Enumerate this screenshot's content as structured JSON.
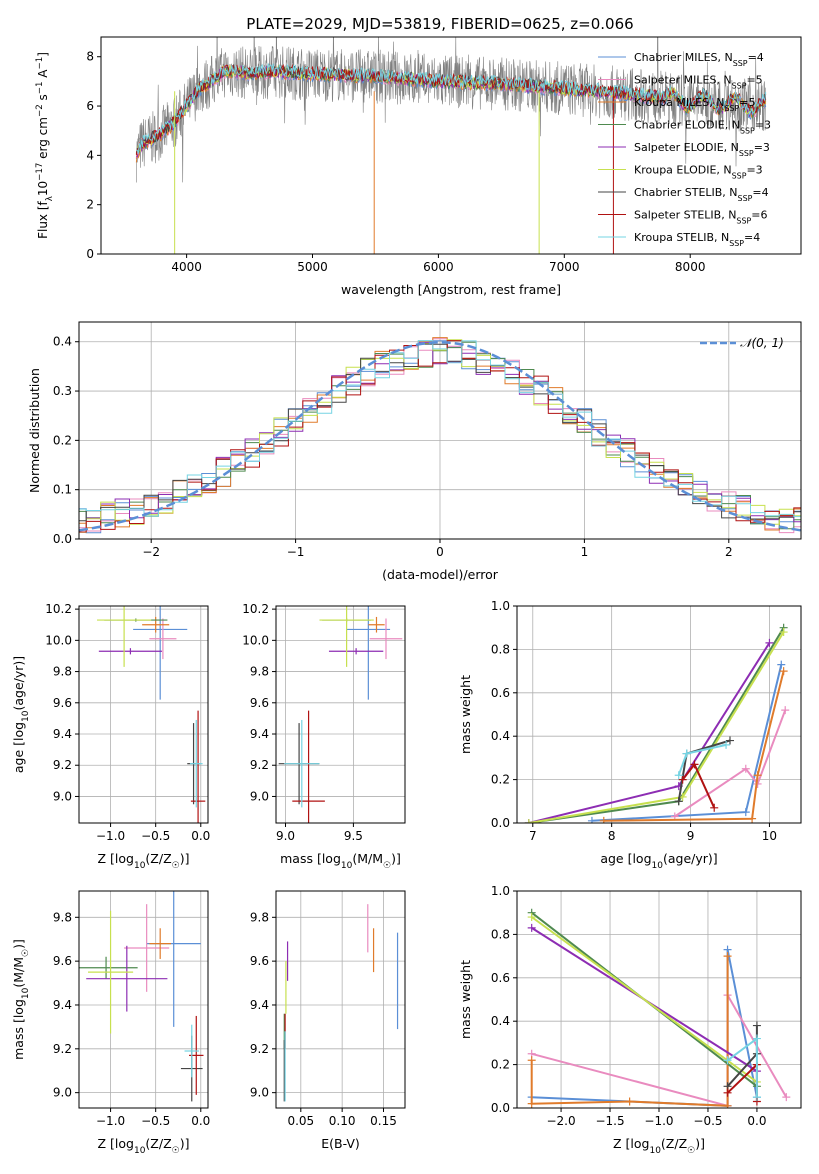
{
  "figure_title": "PLATE=2029, MJD=53819, FIBERID=0625, z=0.066",
  "colors": {
    "chabrier_miles": "#5b8fd6",
    "salpeter_miles": "#e98bbf",
    "kroupa_miles": "#e07b2b",
    "chabrier_elodie": "#4f8a4f",
    "salpeter_elodie": "#8d2db3",
    "kroupa_elodie": "#c7e04f",
    "chabrier_stelib": "#454545",
    "salpeter_stelib": "#b01212",
    "kroupa_stelib": "#76d4e3",
    "data": "#808080",
    "normal": "#5b8fd6"
  },
  "chart_data": [
    {
      "id": "spectrum",
      "type": "line",
      "title": "PLATE=2029, MJD=53819, FIBERID=0625, z=0.066",
      "xlabel": "wavelength [Angstrom, rest frame]",
      "ylabel": "Flux [f_λ 10^-17 erg cm^-2 s^-1 A^-1]",
      "xlim": [
        3320,
        8880
      ],
      "ylim": [
        0,
        8.8
      ],
      "xticks": [
        4000,
        5000,
        6000,
        7000,
        8000
      ],
      "yticks": [
        0,
        2,
        4,
        6,
        8
      ],
      "grid": false,
      "legend_position": "top-right",
      "legend": [
        "Chabrier MILES, N_SSP=4",
        "Salpeter MILES, N_SSP=5",
        "Kroupa MILES, N_SSP=5",
        "Chabrier ELODIE, N_SSP=3",
        "Salpeter ELODIE, N_SSP=3",
        "Kroupa ELODIE, N_SSP=3",
        "Chabrier STELIB, N_SSP=4",
        "Salpeter STELIB, N_SSP=6",
        "Kroupa STELIB, N_SSP=4"
      ],
      "continuum": {
        "wavelength": [
          3600,
          3650,
          3700,
          3800,
          3900,
          4000,
          4100,
          4200,
          4300,
          4400,
          4500,
          4700,
          5000,
          5500,
          6000,
          6500,
          7000,
          7500,
          8000,
          8300,
          8600
        ],
        "flux": [
          4.0,
          4.5,
          4.6,
          4.9,
          5.3,
          6.0,
          6.7,
          7.0,
          7.4,
          7.4,
          7.3,
          7.4,
          7.3,
          7.2,
          7.0,
          6.9,
          6.7,
          6.5,
          6.2,
          6.1,
          6.0
        ]
      }
    },
    {
      "id": "residuals",
      "type": "step",
      "xlabel": "(data-model)/error",
      "ylabel": "Normed distribution",
      "xlim": [
        -2.5,
        2.5
      ],
      "ylim": [
        0,
        0.44
      ],
      "xticks": [
        -2,
        -1,
        0,
        1,
        2
      ],
      "yticks": [
        0.0,
        0.1,
        0.2,
        0.3,
        0.4
      ],
      "grid": true,
      "legend_position": "top-right",
      "legend": [
        "𝒩(0, 1)"
      ],
      "bin_width": 0.1
    },
    {
      "id": "age_vs_Z",
      "type": "errorbar",
      "xlabel": "Z [log10(Z/Z☉)]",
      "ylabel": "age  [log10(age/yr)]",
      "xlim": [
        -1.35,
        0.08
      ],
      "ylim": [
        8.83,
        10.22
      ],
      "xticks": [
        -1.0,
        -0.5,
        0.0
      ],
      "yticks": [
        9.0,
        9.2,
        9.4,
        9.6,
        9.8,
        10.0,
        10.2
      ],
      "grid": true,
      "points": [
        {
          "series": "chabrier_miles",
          "x": -0.45,
          "xerr": 0.3,
          "y": 10.07,
          "yerr": 0.45
        },
        {
          "series": "salpeter_miles",
          "x": -0.42,
          "xerr": 0.15,
          "y": 10.01,
          "yerr": 0.13
        },
        {
          "series": "kroupa_miles",
          "x": -0.5,
          "xerr": 0.15,
          "y": 10.1,
          "yerr": 0.05
        },
        {
          "series": "chabrier_elodie",
          "x": -0.72,
          "xerr": 0.35,
          "y": 10.13,
          "yerr": 0.01
        },
        {
          "series": "salpeter_elodie",
          "x": -0.78,
          "xerr": 0.35,
          "y": 9.93,
          "yerr": 0.02
        },
        {
          "series": "kroupa_elodie",
          "x": -0.85,
          "xerr": 0.3,
          "y": 10.13,
          "yerr": 0.3
        },
        {
          "series": "chabrier_stelib",
          "x": -0.08,
          "xerr": 0.07,
          "y": 9.21,
          "yerr": 0.26
        },
        {
          "series": "salpeter_stelib",
          "x": -0.03,
          "xerr": 0.08,
          "y": 8.97,
          "yerr": 0.58
        },
        {
          "series": "kroupa_stelib",
          "x": -0.05,
          "xerr": 0.07,
          "y": 9.21,
          "yerr": 0.28
        }
      ]
    },
    {
      "id": "age_vs_mass",
      "type": "errorbar",
      "xlabel": "mass [log10(M/M☉)]",
      "ylabel": "",
      "xlim": [
        8.93,
        9.88
      ],
      "ylim": [
        8.83,
        10.22
      ],
      "xticks": [
        9.0,
        9.5
      ],
      "yticks": [
        9.0,
        9.2,
        9.4,
        9.6,
        9.8,
        10.0,
        10.2
      ],
      "grid": true,
      "points": [
        {
          "series": "chabrier_miles",
          "x": 9.61,
          "xerr": 0.16,
          "y": 10.07,
          "yerr": 0.45
        },
        {
          "series": "salpeter_miles",
          "x": 9.74,
          "xerr": 0.12,
          "y": 10.01,
          "yerr": 0.13
        },
        {
          "series": "kroupa_miles",
          "x": 9.67,
          "xerr": 0.06,
          "y": 10.1,
          "yerr": 0.05
        },
        {
          "series": "chabrier_elodie",
          "x": 9.45,
          "xerr": 0.18,
          "y": 10.13,
          "yerr": 0.01
        },
        {
          "series": "salpeter_elodie",
          "x": 9.52,
          "xerr": 0.2,
          "y": 9.93,
          "yerr": 0.02
        },
        {
          "series": "kroupa_elodie",
          "x": 9.45,
          "xerr": 0.2,
          "y": 10.13,
          "yerr": 0.3
        },
        {
          "series": "chabrier_stelib",
          "x": 9.1,
          "xerr": 0.15,
          "y": 9.21,
          "yerr": 0.26
        },
        {
          "series": "salpeter_stelib",
          "x": 9.17,
          "xerr": 0.12,
          "y": 8.97,
          "yerr": 0.58
        },
        {
          "series": "kroupa_stelib",
          "x": 9.12,
          "xerr": 0.13,
          "y": 9.21,
          "yerr": 0.28
        }
      ]
    },
    {
      "id": "mass_weight_vs_age",
      "type": "line",
      "xlabel": "age  [log10(age/yr)]",
      "ylabel": "mass weight",
      "xlim": [
        6.8,
        10.4
      ],
      "ylim": [
        0,
        1.0
      ],
      "xticks": [
        7,
        8,
        9,
        10
      ],
      "yticks": [
        0.0,
        0.2,
        0.4,
        0.6,
        0.8,
        1.0
      ],
      "grid": true,
      "series": [
        {
          "series": "chabrier_miles",
          "x": [
            7.75,
            9.7,
            10.15
          ],
          "y": [
            0.01,
            0.05,
            0.73
          ]
        },
        {
          "series": "salpeter_miles",
          "x": [
            8.8,
            9.7,
            9.85,
            10.2
          ],
          "y": [
            0.03,
            0.25,
            0.18,
            0.52
          ]
        },
        {
          "series": "kroupa_miles",
          "x": [
            7.9,
            9.78,
            9.85,
            10.18
          ],
          "y": [
            0.01,
            0.02,
            0.22,
            0.7
          ]
        },
        {
          "series": "chabrier_elodie",
          "x": [
            6.95,
            8.85,
            10.18
          ],
          "y": [
            0.0,
            0.1,
            0.9
          ]
        },
        {
          "series": "salpeter_elodie",
          "x": [
            6.95,
            8.85,
            10.0
          ],
          "y": [
            0.0,
            0.17,
            0.83
          ]
        },
        {
          "series": "kroupa_elodie",
          "x": [
            6.95,
            8.9,
            10.18
          ],
          "y": [
            0.0,
            0.12,
            0.88
          ]
        },
        {
          "series": "chabrier_stelib",
          "x": [
            8.85,
            8.95,
            9.5
          ],
          "y": [
            0.1,
            0.32,
            0.38
          ]
        },
        {
          "series": "salpeter_stelib",
          "x": [
            8.9,
            9.05,
            9.3
          ],
          "y": [
            0.2,
            0.27,
            0.07
          ]
        },
        {
          "series": "kroupa_stelib",
          "x": [
            8.85,
            8.95,
            9.45
          ],
          "y": [
            0.22,
            0.32,
            0.36
          ]
        }
      ]
    },
    {
      "id": "mass_vs_Z",
      "type": "errorbar",
      "xlabel": "Z [log10(Z/Z☉)]",
      "ylabel": "mass [log10(M/M☉)]",
      "xlim": [
        -1.35,
        0.08
      ],
      "ylim": [
        8.93,
        9.92
      ],
      "xticks": [
        -1.0,
        -0.5,
        0.0
      ],
      "yticks": [
        9.0,
        9.2,
        9.4,
        9.6,
        9.8
      ],
      "grid": true,
      "points": [
        {
          "series": "chabrier_miles",
          "x": -0.3,
          "xerr": 0.3,
          "y": 9.68,
          "yerr": 0.38
        },
        {
          "series": "salpeter_miles",
          "x": -0.6,
          "xerr": 0.25,
          "y": 9.66,
          "yerr": 0.2
        },
        {
          "series": "kroupa_miles",
          "x": -0.45,
          "xerr": 0.12,
          "y": 9.68,
          "yerr": 0.07
        },
        {
          "series": "chabrier_elodie",
          "x": -1.05,
          "xerr": 0.35,
          "y": 9.57,
          "yerr": 0.05
        },
        {
          "series": "salpeter_elodie",
          "x": -0.82,
          "xerr": 0.45,
          "y": 9.52,
          "yerr": 0.15
        },
        {
          "series": "kroupa_elodie",
          "x": -1.0,
          "xerr": 0.25,
          "y": 9.55,
          "yerr": 0.28
        },
        {
          "series": "chabrier_stelib",
          "x": -0.1,
          "xerr": 0.12,
          "y": 9.11,
          "yerr": 0.15
        },
        {
          "series": "salpeter_stelib",
          "x": -0.05,
          "xerr": 0.08,
          "y": 9.17,
          "yerr": 0.18
        },
        {
          "series": "kroupa_stelib",
          "x": -0.1,
          "xerr": 0.08,
          "y": 9.19,
          "yerr": 0.12
        }
      ]
    },
    {
      "id": "mass_vs_ebv",
      "type": "errorbar",
      "xlabel": "E(B-V)",
      "ylabel": "",
      "xlim": [
        0.02,
        0.176
      ],
      "ylim": [
        8.93,
        9.92
      ],
      "xticks": [
        0.05,
        0.1,
        0.15
      ],
      "yticks": [
        9.0,
        9.2,
        9.4,
        9.6,
        9.8
      ],
      "grid": true,
      "points": [
        {
          "series": "chabrier_miles",
          "x": 0.167,
          "xerr": 0,
          "y": 9.51,
          "yerr": 0.22
        },
        {
          "series": "salpeter_miles",
          "x": 0.131,
          "xerr": 0,
          "y": 9.75,
          "yerr": 0.11
        },
        {
          "series": "kroupa_miles",
          "x": 0.138,
          "xerr": 0,
          "y": 9.65,
          "yerr": 0.1
        },
        {
          "series": "chabrier_elodie",
          "x": 0.03,
          "xerr": 0,
          "y": 9.28,
          "yerr": 0.08
        },
        {
          "series": "salpeter_elodie",
          "x": 0.034,
          "xerr": 0,
          "y": 9.6,
          "yerr": 0.09
        },
        {
          "series": "kroupa_elodie",
          "x": 0.032,
          "xerr": 0,
          "y": 9.48,
          "yerr": 0.12
        },
        {
          "series": "chabrier_stelib",
          "x": 0.03,
          "xerr": 0,
          "y": 9.1,
          "yerr": 0.14
        },
        {
          "series": "salpeter_stelib",
          "x": 0.031,
          "xerr": 0,
          "y": 9.28,
          "yerr": 0.08
        },
        {
          "series": "kroupa_stelib",
          "x": 0.031,
          "xerr": 0,
          "y": 9.12,
          "yerr": 0.16
        }
      ]
    },
    {
      "id": "mass_weight_vs_Z",
      "type": "line",
      "xlabel": "Z [log10(Z/Z☉)]",
      "ylabel": "mass weight",
      "xlim": [
        -2.45,
        0.45
      ],
      "ylim": [
        0,
        1.0
      ],
      "xticks": [
        -2.0,
        -1.5,
        -1.0,
        -0.5,
        0.0
      ],
      "yticks": [
        0.0,
        0.2,
        0.4,
        0.6,
        0.8,
        1.0
      ],
      "grid": true,
      "series": [
        {
          "series": "chabrier_miles",
          "x": [
            -2.3,
            -0.3,
            -0.3,
            0.0
          ],
          "y": [
            0.05,
            0.01,
            0.73,
            0.05
          ]
        },
        {
          "series": "salpeter_miles",
          "x": [
            -2.3,
            -0.3,
            -0.3,
            0.3
          ],
          "y": [
            0.25,
            0.01,
            0.52,
            0.05
          ]
        },
        {
          "series": "kroupa_miles",
          "x": [
            -2.3,
            -2.3,
            -1.3,
            -0.3,
            -0.3
          ],
          "y": [
            0.22,
            0.02,
            0.03,
            0.01,
            0.7
          ]
        },
        {
          "series": "chabrier_elodie",
          "x": [
            -2.3,
            0.0
          ],
          "y": [
            0.9,
            0.1
          ]
        },
        {
          "series": "salpeter_elodie",
          "x": [
            -2.3,
            0.0
          ],
          "y": [
            0.83,
            0.17
          ]
        },
        {
          "series": "kroupa_elodie",
          "x": [
            -2.3,
            0.0
          ],
          "y": [
            0.88,
            0.12
          ]
        },
        {
          "series": "chabrier_stelib",
          "x": [
            -0.3,
            0.0,
            0.0
          ],
          "y": [
            0.1,
            0.25,
            0.38
          ]
        },
        {
          "series": "salpeter_stelib",
          "x": [
            -0.3,
            0.0,
            0.0
          ],
          "y": [
            0.07,
            0.2,
            0.03
          ]
        },
        {
          "series": "kroupa_stelib",
          "x": [
            -0.3,
            0.0,
            0.0
          ],
          "y": [
            0.22,
            0.32,
            0.05
          ]
        }
      ]
    }
  ]
}
